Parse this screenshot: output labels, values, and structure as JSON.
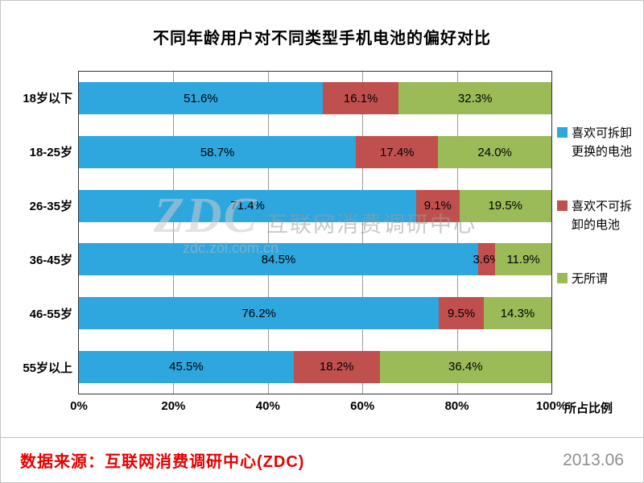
{
  "chart_data": {
    "type": "bar",
    "orientation": "horizontal",
    "stacked": true,
    "title": "不同年龄用户对不同类型手机电池的偏好对比",
    "categories": [
      "18岁以下",
      "18-25岁",
      "26-35岁",
      "36-45岁",
      "46-55岁",
      "55岁以上"
    ],
    "series": [
      {
        "name": "喜欢可拆卸更换的电池",
        "color": "#2EA6DE",
        "values": [
          51.6,
          58.7,
          71.4,
          84.5,
          76.2,
          45.5
        ]
      },
      {
        "name": "喜欢不可拆卸的电池",
        "color": "#C0504D",
        "values": [
          16.1,
          17.4,
          9.1,
          3.6,
          9.5,
          18.2
        ]
      },
      {
        "name": "无所谓",
        "color": "#9BBB59",
        "values": [
          32.3,
          24.0,
          19.5,
          11.9,
          14.3,
          36.4
        ]
      }
    ],
    "x_ticks": [
      "0%",
      "20%",
      "40%",
      "60%",
      "80%",
      "100%"
    ],
    "xlim": [
      0,
      100
    ],
    "xlabel": "所占比例",
    "grid": true,
    "legend_position": "right"
  },
  "watermark": {
    "logo": "ZDC",
    "text": "互联网消费调研中心",
    "url": "zdc.zol.com.cn"
  },
  "footer": {
    "source": "数据来源：互联网消费调研中心(ZDC)",
    "date": "2013.06"
  }
}
